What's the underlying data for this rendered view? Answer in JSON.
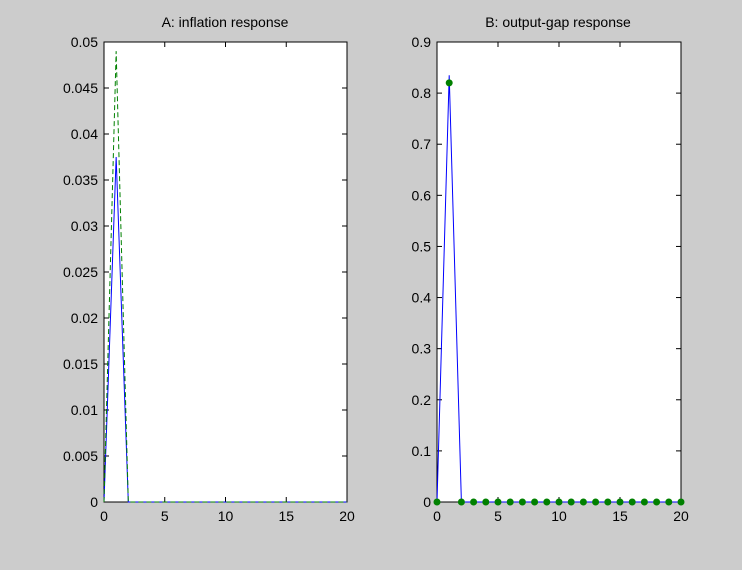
{
  "chart_data": [
    {
      "type": "line",
      "title": "A: inflation response",
      "xlim": [
        0,
        20
      ],
      "ylim": [
        0,
        0.05
      ],
      "xticks": [
        0,
        5,
        10,
        15,
        20
      ],
      "xtick_labels": [
        "0",
        "5",
        "10",
        "15",
        "20"
      ],
      "yticks": [
        0,
        0.005,
        0.01,
        0.015,
        0.02,
        0.025,
        0.03,
        0.035,
        0.04,
        0.045,
        0.05
      ],
      "ytick_labels": [
        "0",
        "0.005",
        "0.01",
        "0.015",
        "0.02",
        "0.025",
        "0.03",
        "0.035",
        "0.04",
        "0.045",
        "0.05"
      ],
      "series": [
        {
          "style": "solid",
          "color": "#0000ff",
          "x": [
            0,
            1,
            2,
            3,
            4,
            5,
            6,
            7,
            8,
            9,
            10,
            11,
            12,
            13,
            14,
            15,
            16,
            17,
            18,
            19,
            20
          ],
          "y": [
            0,
            0.0375,
            0,
            0,
            0,
            0,
            0,
            0,
            0,
            0,
            0,
            0,
            0,
            0,
            0,
            0,
            0,
            0,
            0,
            0,
            0
          ]
        },
        {
          "style": "dashed",
          "color": "#008000",
          "x": [
            0,
            1,
            2,
            3,
            4,
            5,
            6,
            7,
            8,
            9,
            10,
            11,
            12,
            13,
            14,
            15,
            16,
            17,
            18,
            19,
            20
          ],
          "y": [
            0,
            0.049,
            0,
            0,
            0,
            0,
            0,
            0,
            0,
            0,
            0,
            0,
            0,
            0,
            0,
            0,
            0,
            0,
            0,
            0,
            0
          ]
        }
      ]
    },
    {
      "type": "line",
      "title": "B: output-gap response",
      "xlim": [
        0,
        20
      ],
      "ylim": [
        0,
        0.9
      ],
      "xticks": [
        0,
        5,
        10,
        15,
        20
      ],
      "xtick_labels": [
        "0",
        "5",
        "10",
        "15",
        "20"
      ],
      "yticks": [
        0,
        0.1,
        0.2,
        0.3,
        0.4,
        0.5,
        0.6,
        0.7,
        0.8,
        0.9
      ],
      "ytick_labels": [
        "0",
        "0.1",
        "0.2",
        "0.3",
        "0.4",
        "0.5",
        "0.6",
        "0.7",
        "0.8",
        "0.9"
      ],
      "series": [
        {
          "style": "solid",
          "color": "#0000ff",
          "x": [
            0,
            1,
            2,
            3,
            4,
            5,
            6,
            7,
            8,
            9,
            10,
            11,
            12,
            13,
            14,
            15,
            16,
            17,
            18,
            19,
            20
          ],
          "y": [
            0,
            0.835,
            0,
            0,
            0,
            0,
            0,
            0,
            0,
            0,
            0,
            0,
            0,
            0,
            0,
            0,
            0,
            0,
            0,
            0,
            0
          ]
        },
        {
          "style": "markers",
          "color": "#008000",
          "x": [
            0,
            1,
            2,
            3,
            4,
            5,
            6,
            7,
            8,
            9,
            10,
            11,
            12,
            13,
            14,
            15,
            16,
            17,
            18,
            19,
            20
          ],
          "y": [
            0,
            0.82,
            0,
            0,
            0,
            0,
            0,
            0,
            0,
            0,
            0,
            0,
            0,
            0,
            0,
            0,
            0,
            0,
            0,
            0,
            0
          ]
        }
      ]
    }
  ]
}
